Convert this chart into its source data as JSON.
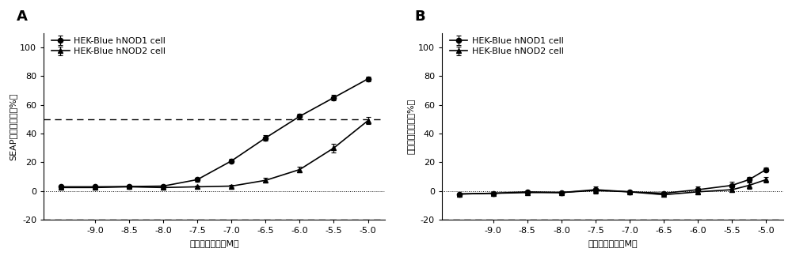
{
  "panel_A": {
    "title": "A",
    "ylabel": "SEAP释放抑制率（%）",
    "xlabel": "样品浓度对数（M）",
    "xlim": [
      -9.75,
      -4.75
    ],
    "ylim": [
      -20,
      110
    ],
    "yticks": [
      -20,
      0,
      20,
      40,
      60,
      80,
      100
    ],
    "xticks": [
      -9.0,
      -8.5,
      -8.0,
      -7.5,
      -7.0,
      -6.5,
      -6.0,
      -5.5,
      -5.0
    ],
    "hline_50": 50,
    "hline_neg20": -20,
    "nod1": {
      "x": [
        -9.5,
        -9.0,
        -8.5,
        -8.0,
        -7.5,
        -7.0,
        -6.5,
        -6.0,
        -5.5,
        -5.0
      ],
      "y": [
        3.0,
        3.0,
        3.2,
        3.5,
        8.0,
        21.0,
        37.0,
        52.0,
        65.0,
        78.0
      ],
      "yerr": [
        1.0,
        1.0,
        1.2,
        1.0,
        1.5,
        1.5,
        2.0,
        2.0,
        2.0,
        1.5
      ],
      "label": "HEK-Blue hNOD1 cell",
      "marker": "o"
    },
    "nod2": {
      "x": [
        -9.5,
        -9.0,
        -8.5,
        -8.0,
        -7.5,
        -7.0,
        -6.5,
        -6.0,
        -5.5,
        -5.0
      ],
      "y": [
        2.5,
        2.5,
        3.0,
        2.5,
        3.0,
        3.5,
        7.5,
        15.0,
        30.0,
        49.0
      ],
      "yerr": [
        0.8,
        0.8,
        1.0,
        1.0,
        1.0,
        1.0,
        1.5,
        2.0,
        3.0,
        2.5
      ],
      "label": "HEK-Blue hNOD2 cell",
      "marker": "^"
    }
  },
  "panel_B": {
    "title": "B",
    "ylabel": "细胞生长抑制率（%）",
    "xlabel": "样品浓度对数（M）",
    "xlim": [
      -9.75,
      -4.75
    ],
    "ylim": [
      -20,
      110
    ],
    "yticks": [
      -20,
      0,
      20,
      40,
      60,
      80,
      100
    ],
    "xticks": [
      -9.0,
      -8.5,
      -8.0,
      -7.5,
      -7.0,
      -6.5,
      -6.0,
      -5.5,
      -5.0
    ],
    "hline_neg20": -20,
    "nod1": {
      "x": [
        -9.5,
        -9.0,
        -8.5,
        -8.0,
        -7.5,
        -7.0,
        -6.5,
        -6.0,
        -5.5,
        -5.25,
        -5.0
      ],
      "y": [
        -2.0,
        -1.5,
        -0.5,
        -1.0,
        1.0,
        -0.5,
        -1.5,
        1.0,
        4.0,
        8.0,
        15.0
      ],
      "yerr": [
        0.5,
        0.5,
        0.5,
        0.5,
        2.5,
        0.5,
        1.0,
        2.5,
        2.5,
        2.0,
        1.5
      ],
      "label": "HEK-Blue hNOD1 cell",
      "marker": "o"
    },
    "nod2": {
      "x": [
        -9.5,
        -9.0,
        -8.5,
        -8.0,
        -7.5,
        -7.0,
        -6.5,
        -6.0,
        -5.5,
        -5.25,
        -5.0
      ],
      "y": [
        -2.0,
        -1.5,
        -1.0,
        -1.0,
        0.5,
        -0.5,
        -2.5,
        -0.5,
        1.0,
        4.0,
        8.0
      ],
      "yerr": [
        0.5,
        0.5,
        0.5,
        0.5,
        0.5,
        0.5,
        0.5,
        0.5,
        1.5,
        2.5,
        2.0
      ],
      "label": "HEK-Blue hNOD2 cell",
      "marker": "^"
    }
  },
  "line_color": "#000000",
  "bg_color": "#ffffff",
  "fontsize_label": 8,
  "fontsize_tick": 8,
  "fontsize_title": 13,
  "fontsize_legend": 8
}
